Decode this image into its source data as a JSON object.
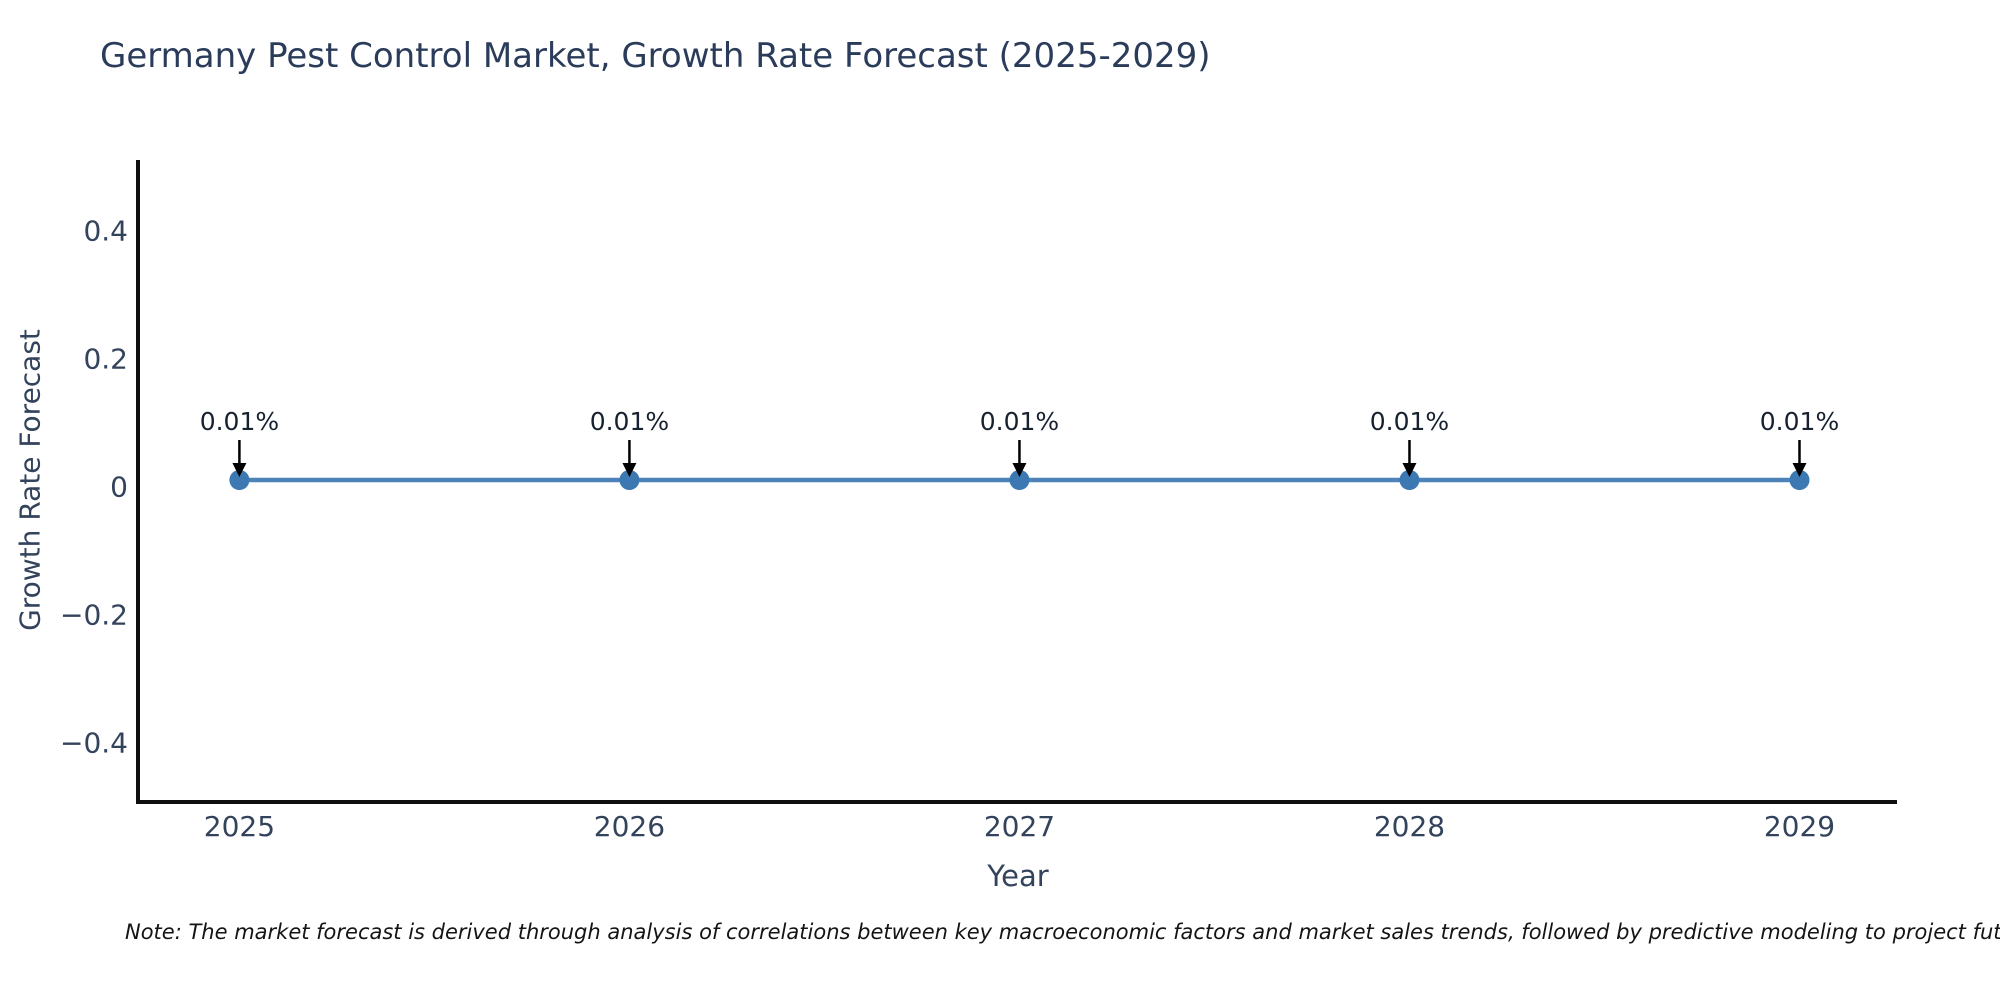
{
  "title": "Germany Pest Control Market, Growth Rate Forecast (2025-2029)",
  "note": "Note: The market forecast is derived through analysis of correlations between key macroeconomic factors and market sales trends, followed by predictive modeling to project future sa",
  "chart_data": {
    "type": "line",
    "title": "Germany Pest Control Market, Growth Rate Forecast (2025-2029)",
    "xlabel": "Year",
    "ylabel": "Growth Rate Forecast",
    "x": [
      2025,
      2026,
      2027,
      2028,
      2029
    ],
    "series": [
      {
        "name": "Growth Rate Forecast",
        "values": [
          0.01,
          0.01,
          0.01,
          0.01,
          0.01
        ]
      }
    ],
    "point_labels": [
      "0.01%",
      "0.01%",
      "0.01%",
      "0.01%",
      "0.01%"
    ],
    "xtick_labels": [
      "2025",
      "2026",
      "2027",
      "2028",
      "2029"
    ],
    "yticks": [
      0.4,
      0.2,
      0,
      -0.2,
      -0.4
    ],
    "ytick_labels": [
      "0.4",
      "0.2",
      "0",
      "−0.2",
      "−0.4"
    ],
    "xlim": [
      2024.74,
      2029.25
    ],
    "ylim": [
      -0.49,
      0.51
    ],
    "grid": false,
    "legend": "none",
    "colors": {
      "line": "#4d83b9",
      "marker": "#3c78b1",
      "annotation_text": "#17212f",
      "annotation_arrow": "#000000",
      "spine": "#0f0f0f",
      "tick_text": "#33435c",
      "title_text": "#2b3c5a",
      "background": "#ffffff"
    }
  }
}
